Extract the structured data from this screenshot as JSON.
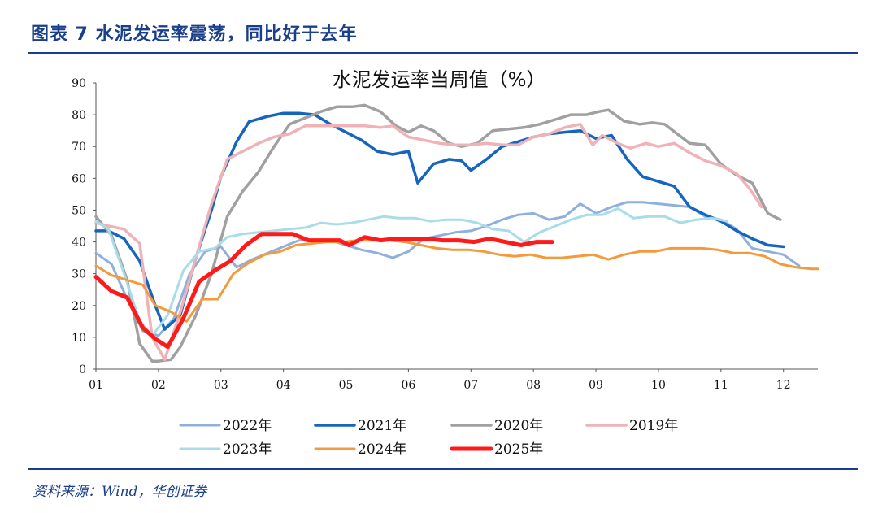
{
  "figure": {
    "title": "图表 7   水泥发运率震荡，同比好于去年",
    "source": "资料来源：Wind，华创证券"
  },
  "chart_data": {
    "type": "line",
    "title": "水泥发运率当周值（%）",
    "xlabel": "",
    "ylabel": "",
    "x_tick_labels": [
      "01",
      "02",
      "03",
      "04",
      "05",
      "06",
      "07",
      "08",
      "09",
      "10",
      "11",
      "12"
    ],
    "y_tick_labels": [
      "0",
      "10",
      "20",
      "30",
      "40",
      "50",
      "60",
      "70",
      "80",
      "90"
    ],
    "xlim": [
      1,
      12.55
    ],
    "ylim": [
      0,
      90
    ],
    "grid": false,
    "legend_position": "bottom",
    "series": [
      {
        "name": "2022年",
        "color": "#8fb0dd",
        "width": 3,
        "x": [
          1,
          1.25,
          1.5,
          1.75,
          2,
          2.25,
          2.5,
          2.75,
          3,
          3.25,
          3.5,
          3.75,
          4,
          4.25,
          4.5,
          4.75,
          5,
          5.25,
          5.5,
          5.75,
          6,
          6.25,
          6.5,
          6.75,
          7,
          7.25,
          7.5,
          7.75,
          8,
          8.25,
          8.5,
          8.75,
          9,
          9.25,
          9.5,
          9.75,
          10,
          10.25,
          10.5,
          10.75,
          11,
          11.25,
          11.5,
          11.75,
          12,
          12.25
        ],
        "y": [
          36.5,
          33,
          22,
          12,
          10.5,
          16,
          30,
          37,
          38.5,
          32,
          34.5,
          36.5,
          38.5,
          40.5,
          40.5,
          40.5,
          39,
          37.5,
          36.5,
          35,
          37,
          41,
          42,
          43,
          43.5,
          45,
          47,
          48.5,
          49,
          47,
          48,
          52,
          49,
          51,
          52.5,
          52.5,
          52,
          51.5,
          51,
          48,
          47,
          44,
          38,
          37,
          36,
          32.5
        ]
      },
      {
        "name": "2021年",
        "color": "#1565c0",
        "width": 3.5,
        "x": [
          1,
          1.2,
          1.45,
          1.7,
          1.95,
          2.1,
          2.35,
          2.6,
          2.85,
          3,
          3.25,
          3.45,
          3.75,
          4,
          4.25,
          4.5,
          4.75,
          5,
          5.25,
          5.5,
          5.75,
          6,
          6.15,
          6.4,
          6.65,
          6.85,
          7,
          7.25,
          7.5,
          7.75,
          8,
          8.25,
          8.5,
          8.75,
          9,
          9.25,
          9.5,
          9.75,
          10,
          10.25,
          10.5,
          10.75,
          11,
          11.25,
          11.5,
          11.75,
          12
        ],
        "y": [
          43.5,
          43.5,
          41,
          34,
          20,
          12.5,
          17,
          35,
          50,
          60.5,
          71.5,
          77.8,
          79.5,
          80.5,
          80.5,
          80,
          77,
          74.5,
          72,
          68.5,
          67.5,
          68.5,
          58.5,
          64.5,
          66,
          65.5,
          62.5,
          66,
          70,
          71.5,
          73,
          74,
          74.5,
          75,
          72.5,
          73.5,
          66,
          60.5,
          59,
          57.5,
          51,
          48.5,
          46.5,
          43.5,
          41,
          39,
          38.5
        ]
      },
      {
        "name": "2020年",
        "color": "#a0a0a0",
        "width": 3.5,
        "x": [
          1,
          1.25,
          1.5,
          1.7,
          1.9,
          2,
          2.2,
          2.35,
          2.6,
          2.85,
          3.1,
          3.35,
          3.6,
          3.85,
          4.1,
          4.35,
          4.6,
          4.85,
          5.1,
          5.3,
          5.55,
          5.8,
          6,
          6.2,
          6.4,
          6.65,
          6.85,
          7.1,
          7.35,
          7.6,
          7.85,
          8.1,
          8.35,
          8.6,
          8.85,
          9.05,
          9.2,
          9.45,
          9.7,
          9.9,
          10.1,
          10.3,
          10.5,
          10.75,
          11,
          11.25,
          11.5,
          11.75,
          11.95
        ],
        "y": [
          48,
          42,
          28,
          8,
          2.5,
          2.5,
          3,
          7,
          17,
          30,
          48,
          56,
          62,
          70,
          77,
          79,
          81,
          82.5,
          82.5,
          83,
          81,
          76.5,
          74.5,
          76.5,
          75,
          71,
          70,
          71,
          75,
          75.5,
          76,
          77,
          78.5,
          80,
          80,
          81,
          81.5,
          78,
          77,
          77.5,
          77,
          74,
          71,
          70.5,
          64.5,
          61,
          58.5,
          49,
          47
        ]
      },
      {
        "name": "2019年",
        "color": "#efb2b6",
        "width": 3.5,
        "x": [
          1,
          1.2,
          1.45,
          1.7,
          1.9,
          2.1,
          2.35,
          2.6,
          2.85,
          3.1,
          3.35,
          3.6,
          3.85,
          4.1,
          4.35,
          4.6,
          4.85,
          5.1,
          5.3,
          5.55,
          5.75,
          6,
          6.25,
          6.5,
          6.75,
          7,
          7.25,
          7.5,
          7.75,
          8,
          8.25,
          8.5,
          8.75,
          8.95,
          9.1,
          9.35,
          9.55,
          9.8,
          10,
          10.25,
          10.5,
          10.75,
          11,
          11.25,
          11.45,
          11.65
        ],
        "y": [
          46,
          45,
          44,
          39.5,
          10,
          3,
          18,
          35,
          52,
          66,
          68.5,
          71,
          73,
          74,
          76.5,
          76.5,
          76.5,
          76.5,
          76.5,
          76,
          76.5,
          73,
          72,
          71,
          70.5,
          70.5,
          71,
          70.5,
          70.5,
          73,
          74,
          76,
          77,
          70.5,
          73.5,
          71,
          69.5,
          71,
          70,
          71,
          68,
          65.5,
          64,
          61.5,
          57,
          51
        ]
      },
      {
        "name": "2023年",
        "color": "#a8dce9",
        "width": 3,
        "x": [
          1,
          1.2,
          1.45,
          1.7,
          1.9,
          2.15,
          2.4,
          2.65,
          2.9,
          3.1,
          3.35,
          3.6,
          3.85,
          4.1,
          4.35,
          4.6,
          4.85,
          5.1,
          5.35,
          5.6,
          5.85,
          6.1,
          6.35,
          6.6,
          6.85,
          7.1,
          7.35,
          7.6,
          7.85,
          8.1,
          8.35,
          8.6,
          8.85,
          9.1,
          9.35,
          9.6,
          9.85,
          10.1,
          10.35,
          10.6,
          10.85,
          11.1
        ],
        "y": [
          46.5,
          44,
          30,
          15,
          10.5,
          17,
          31,
          37,
          38,
          41.5,
          42.5,
          43,
          43.5,
          44,
          44.5,
          46,
          45.5,
          46,
          47,
          48,
          47.5,
          47.5,
          46.5,
          47,
          47,
          46,
          44,
          43.5,
          40,
          43,
          45,
          47,
          48.5,
          48.5,
          50.5,
          47.5,
          48,
          48,
          46,
          47,
          47.5,
          46.5
        ]
      },
      {
        "name": "2024年",
        "color": "#f39a3c",
        "width": 3,
        "x": [
          1,
          1.25,
          1.5,
          1.75,
          1.95,
          2.2,
          2.45,
          2.7,
          2.95,
          3.2,
          3.45,
          3.7,
          3.95,
          4.2,
          4.45,
          4.7,
          4.95,
          5.2,
          5.45,
          5.7,
          5.95,
          6.2,
          6.45,
          6.7,
          6.95,
          7.2,
          7.45,
          7.7,
          7.95,
          8.2,
          8.45,
          8.7,
          8.95,
          9.2,
          9.45,
          9.7,
          9.95,
          10.2,
          10.45,
          10.7,
          10.95,
          11.2,
          11.45,
          11.7,
          11.95,
          12.2,
          12.45,
          12.55
        ],
        "y": [
          32.5,
          29.5,
          28,
          26.5,
          20,
          18,
          15,
          22,
          22,
          30,
          33.5,
          36,
          37,
          39,
          39.5,
          40,
          40,
          40.5,
          40.5,
          40.5,
          40,
          39,
          38,
          37.5,
          37.5,
          37,
          36,
          35.5,
          36,
          35,
          35,
          35.5,
          36,
          34.5,
          36,
          37,
          37,
          38,
          38,
          38,
          37.5,
          36.5,
          36.5,
          35.5,
          33,
          32,
          31.5,
          31.5
        ]
      },
      {
        "name": "2025年",
        "color": "#ff1a1a",
        "width": 5,
        "x": [
          1,
          1.25,
          1.5,
          1.75,
          1.95,
          2.15,
          2.4,
          2.65,
          2.9,
          3.15,
          3.4,
          3.65,
          3.9,
          4.15,
          4.4,
          4.65,
          4.9,
          5.05,
          5.3,
          5.55,
          5.8,
          6.05,
          6.3,
          6.55,
          6.8,
          7.05,
          7.3,
          7.55,
          7.8,
          8.05,
          8.3
        ],
        "y": [
          29,
          24.5,
          22.5,
          13,
          9.5,
          7,
          16,
          27.5,
          31,
          34,
          39,
          42.5,
          42.5,
          42.5,
          40.5,
          40.5,
          40.5,
          39,
          41.5,
          40.5,
          41,
          41,
          41,
          40.5,
          40.5,
          40,
          41,
          40,
          39,
          40,
          40
        ]
      }
    ]
  }
}
